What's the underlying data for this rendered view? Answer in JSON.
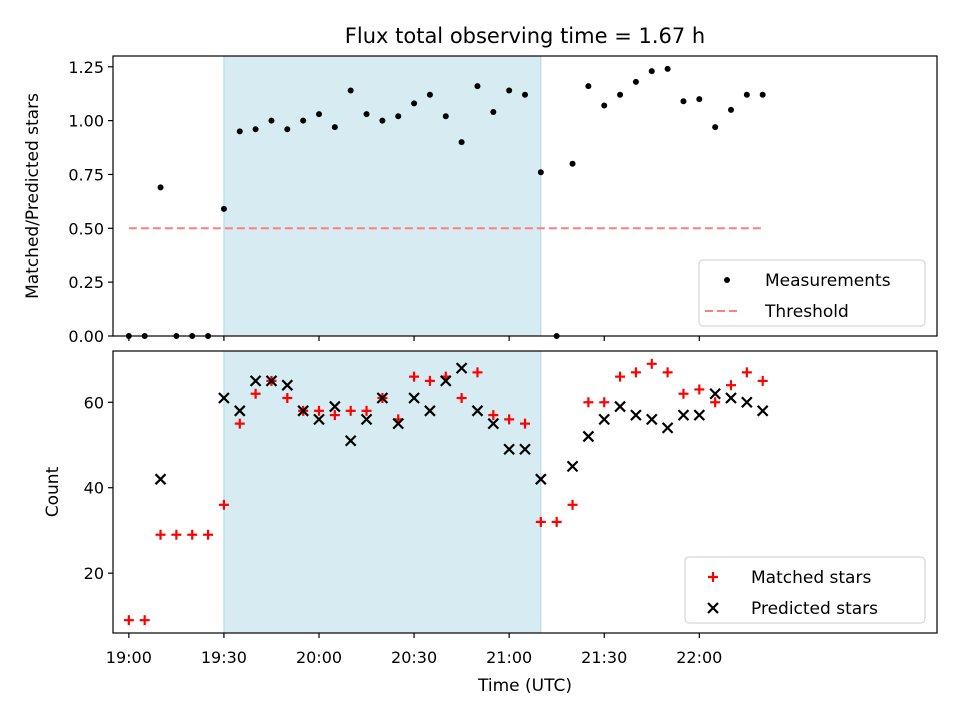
{
  "chart_data": [
    {
      "type": "scatter",
      "title": "Flux total observing time = 1.67 h",
      "ylabel": "Matched/Predicted stars",
      "xlim": [
        "18:55",
        "23:15"
      ],
      "ylim": [
        0,
        1.3
      ],
      "yticks": [
        "0.00",
        "0.25",
        "0.50",
        "0.75",
        "1.00",
        "1.25"
      ],
      "shaded_region": {
        "start": "19:30",
        "end": "21:10",
        "color": "#add8e6"
      },
      "series": [
        {
          "name": "Measurements",
          "marker": "dot",
          "color": "#000000",
          "points": [
            {
              "x": "19:00",
              "y": 0.0
            },
            {
              "x": "19:05",
              "y": 0.0
            },
            {
              "x": "19:10",
              "y": 0.69
            },
            {
              "x": "19:15",
              "y": 0.0
            },
            {
              "x": "19:20",
              "y": 0.0
            },
            {
              "x": "19:25",
              "y": 0.0
            },
            {
              "x": "19:30",
              "y": 0.59
            },
            {
              "x": "19:35",
              "y": 0.95
            },
            {
              "x": "19:40",
              "y": 0.96
            },
            {
              "x": "19:45",
              "y": 1.0
            },
            {
              "x": "19:50",
              "y": 0.96
            },
            {
              "x": "19:55",
              "y": 1.0
            },
            {
              "x": "20:00",
              "y": 1.03
            },
            {
              "x": "20:05",
              "y": 0.97
            },
            {
              "x": "20:10",
              "y": 1.14
            },
            {
              "x": "20:15",
              "y": 1.03
            },
            {
              "x": "20:20",
              "y": 1.0
            },
            {
              "x": "20:25",
              "y": 1.02
            },
            {
              "x": "20:30",
              "y": 1.08
            },
            {
              "x": "20:35",
              "y": 1.12
            },
            {
              "x": "20:40",
              "y": 1.02
            },
            {
              "x": "20:45",
              "y": 0.9
            },
            {
              "x": "20:50",
              "y": 1.16
            },
            {
              "x": "20:55",
              "y": 1.04
            },
            {
              "x": "21:00",
              "y": 1.14
            },
            {
              "x": "21:05",
              "y": 1.12
            },
            {
              "x": "21:10",
              "y": 0.76
            },
            {
              "x": "21:15",
              "y": 0.0
            },
            {
              "x": "21:20",
              "y": 0.8
            },
            {
              "x": "21:25",
              "y": 1.16
            },
            {
              "x": "21:30",
              "y": 1.07
            },
            {
              "x": "21:35",
              "y": 1.12
            },
            {
              "x": "21:40",
              "y": 1.18
            },
            {
              "x": "21:45",
              "y": 1.23
            },
            {
              "x": "21:50",
              "y": 1.24
            },
            {
              "x": "21:55",
              "y": 1.09
            },
            {
              "x": "22:00",
              "y": 1.1
            },
            {
              "x": "22:05",
              "y": 0.97
            },
            {
              "x": "22:10",
              "y": 1.05
            },
            {
              "x": "22:15",
              "y": 1.12
            },
            {
              "x": "22:20",
              "y": 1.12
            }
          ]
        },
        {
          "name": "Threshold",
          "marker": "dashed-line",
          "color": "#ff7f7f",
          "points": [
            {
              "x": "19:00",
              "y": 0.5
            },
            {
              "x": "22:20",
              "y": 0.5
            }
          ]
        }
      ],
      "legend": "lower-right"
    },
    {
      "type": "scatter",
      "xlabel": "Time (UTC)",
      "ylabel": "Count",
      "xlim": [
        "18:55",
        "23:15"
      ],
      "ylim": [
        6,
        72
      ],
      "yticks": [
        "20",
        "40",
        "60"
      ],
      "xticks": [
        "19:00",
        "19:30",
        "20:00",
        "20:30",
        "21:00",
        "21:30",
        "22:00"
      ],
      "shaded_region": {
        "start": "19:30",
        "end": "21:10",
        "color": "#add8e6"
      },
      "series": [
        {
          "name": "Matched stars",
          "marker": "plus",
          "color": "#ff0000",
          "points": [
            {
              "x": "19:00",
              "y": 9
            },
            {
              "x": "19:05",
              "y": 9
            },
            {
              "x": "19:10",
              "y": 29
            },
            {
              "x": "19:15",
              "y": 29
            },
            {
              "x": "19:20",
              "y": 29
            },
            {
              "x": "19:25",
              "y": 29
            },
            {
              "x": "19:30",
              "y": 36
            },
            {
              "x": "19:35",
              "y": 55
            },
            {
              "x": "19:40",
              "y": 62
            },
            {
              "x": "19:45",
              "y": 65
            },
            {
              "x": "19:50",
              "y": 61
            },
            {
              "x": "19:55",
              "y": 58
            },
            {
              "x": "20:00",
              "y": 58
            },
            {
              "x": "20:05",
              "y": 57
            },
            {
              "x": "20:10",
              "y": 58
            },
            {
              "x": "20:15",
              "y": 58
            },
            {
              "x": "20:20",
              "y": 61
            },
            {
              "x": "20:25",
              "y": 56
            },
            {
              "x": "20:30",
              "y": 66
            },
            {
              "x": "20:35",
              "y": 65
            },
            {
              "x": "20:40",
              "y": 66
            },
            {
              "x": "20:45",
              "y": 61
            },
            {
              "x": "20:50",
              "y": 67
            },
            {
              "x": "20:55",
              "y": 57
            },
            {
              "x": "21:00",
              "y": 56
            },
            {
              "x": "21:05",
              "y": 55
            },
            {
              "x": "21:10",
              "y": 32
            },
            {
              "x": "21:15",
              "y": 32
            },
            {
              "x": "21:20",
              "y": 36
            },
            {
              "x": "21:25",
              "y": 60
            },
            {
              "x": "21:30",
              "y": 60
            },
            {
              "x": "21:35",
              "y": 66
            },
            {
              "x": "21:40",
              "y": 67
            },
            {
              "x": "21:45",
              "y": 69
            },
            {
              "x": "21:50",
              "y": 67
            },
            {
              "x": "21:55",
              "y": 62
            },
            {
              "x": "22:00",
              "y": 63
            },
            {
              "x": "22:05",
              "y": 60
            },
            {
              "x": "22:10",
              "y": 64
            },
            {
              "x": "22:15",
              "y": 67
            },
            {
              "x": "22:20",
              "y": 65
            }
          ]
        },
        {
          "name": "Predicted stars",
          "marker": "x",
          "color": "#000000",
          "points": [
            {
              "x": "19:10",
              "y": 42
            },
            {
              "x": "19:30",
              "y": 61
            },
            {
              "x": "19:35",
              "y": 58
            },
            {
              "x": "19:40",
              "y": 65
            },
            {
              "x": "19:45",
              "y": 65
            },
            {
              "x": "19:50",
              "y": 64
            },
            {
              "x": "19:55",
              "y": 58
            },
            {
              "x": "20:00",
              "y": 56
            },
            {
              "x": "20:05",
              "y": 59
            },
            {
              "x": "20:10",
              "y": 51
            },
            {
              "x": "20:15",
              "y": 56
            },
            {
              "x": "20:20",
              "y": 61
            },
            {
              "x": "20:25",
              "y": 55
            },
            {
              "x": "20:30",
              "y": 61
            },
            {
              "x": "20:35",
              "y": 58
            },
            {
              "x": "20:40",
              "y": 65
            },
            {
              "x": "20:45",
              "y": 68
            },
            {
              "x": "20:50",
              "y": 58
            },
            {
              "x": "20:55",
              "y": 55
            },
            {
              "x": "21:00",
              "y": 49
            },
            {
              "x": "21:05",
              "y": 49
            },
            {
              "x": "21:10",
              "y": 42
            },
            {
              "x": "21:20",
              "y": 45
            },
            {
              "x": "21:25",
              "y": 52
            },
            {
              "x": "21:30",
              "y": 56
            },
            {
              "x": "21:35",
              "y": 59
            },
            {
              "x": "21:40",
              "y": 57
            },
            {
              "x": "21:45",
              "y": 56
            },
            {
              "x": "21:50",
              "y": 54
            },
            {
              "x": "21:55",
              "y": 57
            },
            {
              "x": "22:00",
              "y": 57
            },
            {
              "x": "22:05",
              "y": 62
            },
            {
              "x": "22:10",
              "y": 61
            },
            {
              "x": "22:15",
              "y": 60
            },
            {
              "x": "22:20",
              "y": 58
            }
          ]
        }
      ],
      "legend": "lower-right"
    }
  ]
}
